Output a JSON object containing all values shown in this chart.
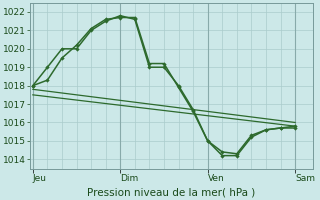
{
  "title": "Pression niveau de la mer( hPa )",
  "ylim": [
    1013.5,
    1022.5
  ],
  "yticks": [
    1014,
    1015,
    1016,
    1017,
    1018,
    1019,
    1020,
    1021,
    1022
  ],
  "bg_color": "#cce8e8",
  "grid_color": "#aacccc",
  "line_color": "#2d6a2d",
  "xtick_labels": [
    "Jeu",
    "Dim",
    "Ven",
    "Sam"
  ],
  "xtick_positions": [
    0,
    3,
    6,
    9
  ],
  "xlim": [
    -0.1,
    9.6
  ],
  "line1_x": [
    0,
    0.5,
    1.0,
    1.5,
    2.0,
    2.5,
    3.0,
    3.5,
    4.0,
    4.5,
    5.0,
    5.5,
    6.0,
    6.5,
    7.0,
    7.5,
    8.0,
    8.5,
    9.0
  ],
  "line1_y": [
    1018.0,
    1019.0,
    1020.0,
    1020.0,
    1021.0,
    1021.5,
    1021.8,
    1021.6,
    1019.0,
    1019.0,
    1018.0,
    1016.7,
    1015.0,
    1014.2,
    1014.2,
    1015.2,
    1015.6,
    1015.7,
    1015.8
  ],
  "line2_x": [
    0,
    0.5,
    1.0,
    1.5,
    2.0,
    2.5,
    3.0,
    3.5,
    4.0,
    4.5,
    5.0,
    5.5,
    6.0,
    6.5,
    7.0,
    7.5,
    8.0,
    8.5,
    9.0
  ],
  "line2_y": [
    1018.0,
    1018.3,
    1019.5,
    1020.2,
    1021.1,
    1021.6,
    1021.7,
    1021.7,
    1019.2,
    1019.2,
    1017.9,
    1016.6,
    1015.0,
    1014.4,
    1014.3,
    1015.3,
    1015.6,
    1015.7,
    1015.7
  ],
  "line3_x": [
    0,
    9
  ],
  "line3_y": [
    1017.8,
    1016.0
  ],
  "line4_x": [
    0,
    9
  ],
  "line4_y": [
    1017.5,
    1015.8
  ],
  "vline_positions": [
    0,
    3,
    6,
    9
  ],
  "minor_grid_step": 0.5,
  "label_fontsize": 6.5,
  "xlabel_fontsize": 7.5
}
